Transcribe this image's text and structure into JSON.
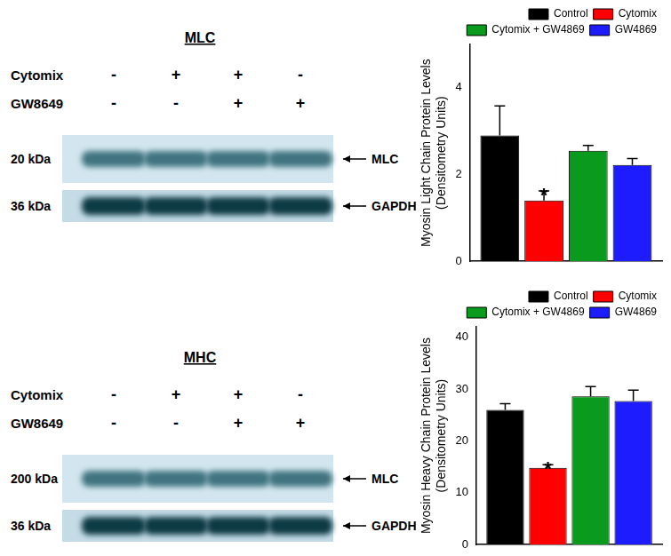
{
  "blots": [
    {
      "title": "MLC",
      "rows": [
        {
          "label": "Cytomix",
          "signs": [
            "-",
            "+",
            "+",
            "-"
          ]
        },
        {
          "label": "GW8649",
          "signs": [
            "-",
            "-",
            "+",
            "+"
          ]
        }
      ],
      "bands": [
        {
          "size": "20 kDa",
          "name": "MLC"
        },
        {
          "size": "36 kDa",
          "name": "GAPDH"
        }
      ]
    },
    {
      "title": "MHC",
      "rows": [
        {
          "label": "Cytomix",
          "signs": [
            "-",
            "+",
            "+",
            "-"
          ]
        },
        {
          "label": "GW8649",
          "signs": [
            "-",
            "-",
            "+",
            "+"
          ]
        }
      ],
      "bands": [
        {
          "size": "200 kDa",
          "name": "MLC"
        },
        {
          "size": "36 kDa",
          "name": "GAPDH"
        }
      ]
    }
  ],
  "chart_data": [
    {
      "type": "bar",
      "ylabel": [
        "Myosin Light Chain Protein Levels",
        "(Densitometry Units)"
      ],
      "categories": [
        null
      ],
      "series": [
        {
          "name": "Control",
          "color": "#000000",
          "values": [
            2.9
          ],
          "errors": [
            0.68
          ]
        },
        {
          "name": "Cytomix",
          "color": "#ff0000",
          "values": [
            1.4
          ],
          "errors": [
            0.22
          ]
        },
        {
          "name": "Cytomix + GW4869",
          "color": "#0a9a1e",
          "values": [
            2.55
          ],
          "errors": [
            0.12
          ]
        },
        {
          "name": "GW4869",
          "color": "#1c1cff",
          "values": [
            2.22
          ],
          "errors": [
            0.15
          ]
        }
      ],
      "annotations": [
        {
          "text": "*",
          "series": "Cytomix"
        }
      ],
      "ylim": [
        0,
        5
      ],
      "yticks": [
        0,
        2,
        4
      ],
      "grid": false,
      "legend": "top",
      "tick_labels": "y"
    },
    {
      "type": "bar",
      "ylabel": [
        "Myosin Heavy Chain Protein Levels",
        "(Densitometry Units)"
      ],
      "categories": [
        null
      ],
      "series": [
        {
          "name": "Control",
          "color": "#000000",
          "values": [
            26
          ],
          "errors": [
            1.2
          ]
        },
        {
          "name": "Cytomix",
          "color": "#ff0000",
          "values": [
            14.8
          ],
          "errors": [
            0.6
          ]
        },
        {
          "name": "Cytomix + GW4869",
          "color": "#0a9a1e",
          "values": [
            28.6
          ],
          "errors": [
            1.9
          ]
        },
        {
          "name": "GW4869",
          "color": "#1c1cff",
          "values": [
            27.7
          ],
          "errors": [
            2.1
          ]
        }
      ],
      "annotations": [
        {
          "text": "*",
          "series": "Cytomix"
        }
      ],
      "ylim": [
        0,
        42
      ],
      "yticks": [
        0,
        10,
        20,
        30,
        40
      ],
      "grid": false,
      "legend": "top",
      "tick_labels": "y"
    }
  ]
}
